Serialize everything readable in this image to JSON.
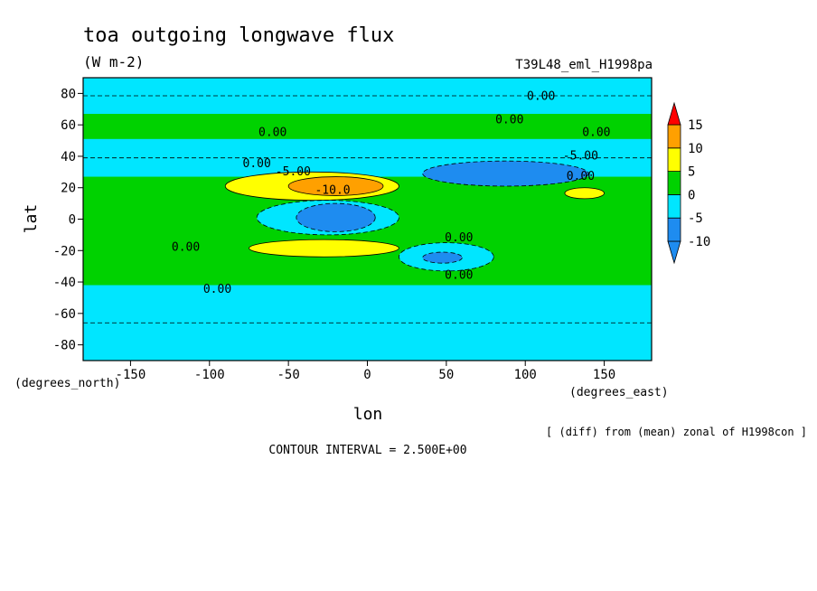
{
  "chart_data": {
    "type": "heatmap",
    "title": "toa outgoing longwave flux",
    "units": "(W m-2)",
    "run_label": "T39L48_eml_H1998pa",
    "xlabel": "lon",
    "ylabel": "lat",
    "x_unit_label": "(degrees_east)",
    "y_unit_label": "(degrees_north)",
    "xlim": [
      -180,
      180
    ],
    "ylim": [
      -90,
      90
    ],
    "x_ticks": [
      -150,
      -100,
      -50,
      0,
      50,
      100,
      150
    ],
    "y_ticks": [
      80,
      60,
      40,
      20,
      0,
      -20,
      -40,
      -60,
      -80
    ],
    "x_tick_labels": [
      "-150",
      "-100",
      "-50",
      "0",
      "50",
      "100",
      "150"
    ],
    "y_tick_labels": [
      "80",
      "60",
      "40",
      "20",
      "0",
      "-20",
      "-40",
      "-60",
      "-80"
    ],
    "note": "[ (diff) from (mean) zonal of H1998con ]",
    "contour_interval": "CONTOUR INTERVAL = 2.500E+00",
    "colorbar": {
      "levels": [
        -10,
        -5,
        0,
        5,
        10,
        15
      ],
      "tick_labels": [
        "15",
        "10",
        "5",
        "0",
        "-5",
        "-10"
      ],
      "colors": [
        "#1e8cf0",
        "#00e6ff",
        "#00d200",
        "#ffff00",
        "#ffa000",
        "#ff0000"
      ],
      "bands": [
        {
          "range": [
            -15,
            -10
          ],
          "color": "#1e8cf0"
        },
        {
          "range": [
            -10,
            -5
          ],
          "color": "#1e8cf0"
        },
        {
          "range": [
            -5,
            0
          ],
          "color": "#00e6ff"
        },
        {
          "range": [
            0,
            5
          ],
          "color": "#00d200"
        },
        {
          "range": [
            5,
            10
          ],
          "color": "#ffff00"
        },
        {
          "range": [
            10,
            15
          ],
          "color": "#ffa000"
        }
      ]
    },
    "background_color": "#00d200",
    "regions": [
      {
        "label": "cyan",
        "value_range": [
          -5,
          0
        ],
        "lon": [
          -180,
          180
        ],
        "lat": [
          -90,
          -42
        ]
      },
      {
        "label": "cyan",
        "value_range": [
          -5,
          0
        ],
        "lon": [
          -180,
          180
        ],
        "lat": [
          27,
          51
        ]
      },
      {
        "label": "cyan",
        "value_range": [
          -5,
          0
        ],
        "lon": [
          -180,
          180
        ],
        "lat": [
          67,
          90
        ]
      },
      {
        "label": "yellow",
        "value_range": [
          5,
          10
        ],
        "lon": [
          -90,
          20
        ],
        "lat": [
          12,
          30
        ]
      },
      {
        "label": "orange",
        "value_range": [
          10,
          15
        ],
        "lon": [
          -50,
          10
        ],
        "lat": [
          15,
          27
        ]
      },
      {
        "label": "yellow",
        "value_range": [
          5,
          10
        ],
        "lon": [
          -75,
          20
        ],
        "lat": [
          -24,
          -13
        ]
      },
      {
        "label": "cyan",
        "value_range": [
          -5,
          0
        ],
        "lon": [
          -70,
          20
        ],
        "lat": [
          -10,
          12
        ]
      },
      {
        "label": "blue",
        "value_range": [
          -10,
          -5
        ],
        "lon": [
          -45,
          5
        ],
        "lat": [
          -8,
          10
        ]
      },
      {
        "label": "blue",
        "value_range": [
          -10,
          -5
        ],
        "lon": [
          35,
          140
        ],
        "lat": [
          21,
          37
        ]
      },
      {
        "label": "cyan",
        "value_range": [
          -5,
          0
        ],
        "lon": [
          20,
          80
        ],
        "lat": [
          -33,
          -15
        ]
      },
      {
        "label": "blue",
        "value_range": [
          -10,
          -5
        ],
        "lon": [
          35,
          60
        ],
        "lat": [
          -28,
          -21
        ]
      },
      {
        "label": "yellow",
        "value_range": [
          5,
          10
        ],
        "lon": [
          125,
          150
        ],
        "lat": [
          13,
          20
        ]
      }
    ],
    "contour_labels": [
      {
        "text": "0.00",
        "lon": 110,
        "lat": 76
      },
      {
        "text": "0.00",
        "lon": 90,
        "lat": 61
      },
      {
        "text": "0.00",
        "lon": 145,
        "lat": 53
      },
      {
        "text": "0.00",
        "lon": -60,
        "lat": 53
      },
      {
        "text": "0.00",
        "lon": -70,
        "lat": 33
      },
      {
        "text": "-5.00",
        "lon": 135,
        "lat": 38
      },
      {
        "text": "0.00",
        "lon": 135,
        "lat": 25
      },
      {
        "text": "-5.00",
        "lon": -47,
        "lat": 28
      },
      {
        "text": "-10.0",
        "lon": -22,
        "lat": 16
      },
      {
        "text": "0.00",
        "lon": 58,
        "lat": -14
      },
      {
        "text": "0.00",
        "lon": -115,
        "lat": -20
      },
      {
        "text": "0.00",
        "lon": 58,
        "lat": -38
      },
      {
        "text": "0.00",
        "lon": -95,
        "lat": -47
      }
    ]
  }
}
